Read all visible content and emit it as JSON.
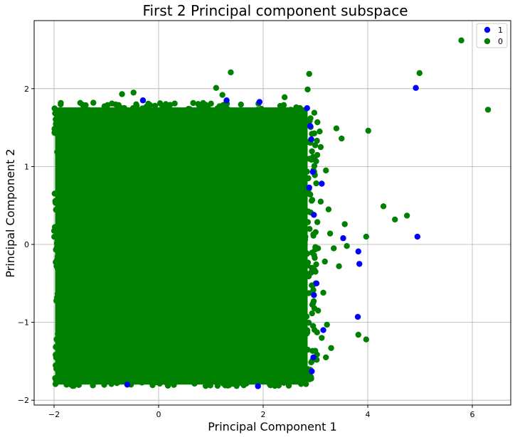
{
  "chart_data": {
    "type": "scatter",
    "title": "First 2 Principal component subspace",
    "xlabel": "Principal Component 1",
    "ylabel": "Principal Component 2",
    "xlim": [
      -2.4,
      6.8
    ],
    "ylim": [
      -2.1,
      2.9
    ],
    "xticks": [
      -2,
      0,
      2,
      4,
      6
    ],
    "yticks": [
      -2,
      -1,
      0,
      1,
      2
    ],
    "tick_labels_x": [
      "−2",
      "0",
      "2",
      "4",
      "6"
    ],
    "tick_labels_y": [
      "−2",
      "−1",
      "0",
      "1",
      "2"
    ],
    "grid": true,
    "legend_position": "top-right",
    "dense_region": {
      "x": [
        -2.0,
        3.0
      ],
      "y": [
        -1.82,
        1.8
      ],
      "dominant_series": "0"
    },
    "series": [
      {
        "name": "1",
        "color": "#0000ff",
        "points": [
          [
            4.92,
            2.01
          ],
          [
            4.95,
            0.1
          ],
          [
            3.53,
            0.08
          ],
          [
            3.82,
            -0.09
          ],
          [
            3.84,
            -0.25
          ],
          [
            3.81,
            -0.93
          ],
          [
            3.15,
            -1.1
          ],
          [
            3.12,
            0.78
          ],
          [
            2.95,
            0.93
          ],
          [
            2.9,
            1.52
          ],
          [
            2.92,
            1.35
          ],
          [
            2.96,
            -1.45
          ],
          [
            2.93,
            -1.63
          ],
          [
            1.93,
            1.83
          ],
          [
            1.3,
            1.85
          ],
          [
            -0.3,
            1.85
          ],
          [
            -0.6,
            -1.8
          ],
          [
            1.9,
            -1.82
          ],
          [
            2.84,
            1.75
          ],
          [
            2.97,
            0.38
          ],
          [
            3.02,
            -0.5
          ],
          [
            2.88,
            0.73
          ],
          [
            2.97,
            -0.65
          ]
        ]
      },
      {
        "name": "0",
        "color": "#008000",
        "points": [
          [
            5.79,
            2.62
          ],
          [
            4.99,
            2.2
          ],
          [
            6.3,
            1.73
          ],
          [
            4.01,
            1.46
          ],
          [
            4.3,
            0.49
          ],
          [
            4.52,
            0.32
          ],
          [
            4.75,
            0.37
          ],
          [
            3.97,
            0.1
          ],
          [
            3.97,
            -1.22
          ],
          [
            3.82,
            -1.16
          ],
          [
            3.56,
            0.26
          ],
          [
            3.5,
            1.36
          ],
          [
            3.4,
            1.49
          ],
          [
            3.3,
            -1.33
          ],
          [
            3.2,
            0.95
          ],
          [
            3.15,
            -0.62
          ],
          [
            3.45,
            -0.28
          ],
          [
            3.28,
            0.14
          ],
          [
            3.35,
            -0.05
          ],
          [
            1.38,
            2.21
          ],
          [
            1.1,
            2.01
          ],
          [
            1.22,
            1.92
          ],
          [
            2.88,
            2.19
          ],
          [
            2.85,
            1.99
          ],
          [
            2.41,
            1.89
          ],
          [
            -0.48,
            1.95
          ],
          [
            -0.7,
            1.93
          ],
          [
            -1.95,
            1.62
          ],
          [
            3.08,
            1.45
          ],
          [
            3.1,
            1.25
          ],
          [
            3.18,
            -0.22
          ],
          [
            3.05,
            -0.85
          ],
          [
            3.2,
            -1.45
          ],
          [
            3.1,
            0.55
          ],
          [
            3.6,
            -0.02
          ],
          [
            3.25,
            0.45
          ],
          [
            3.12,
            -1.2
          ],
          [
            3.22,
            -1.03
          ],
          [
            2.98,
            1.1
          ],
          [
            3.0,
            -0.35
          ]
        ]
      }
    ]
  }
}
